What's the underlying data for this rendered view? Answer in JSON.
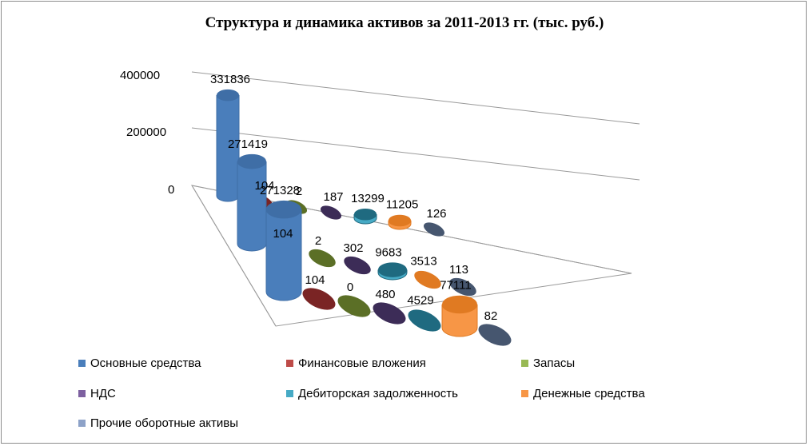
{
  "chart_data": {
    "type": "bar",
    "title": "Структура и динамика активов за 2011-2013 гг. (тыс. руб.)",
    "y_ticks": [
      "400000",
      "200000",
      "0"
    ],
    "categories": [
      "Основные средства",
      "Финансовые вложения",
      "Запасы",
      "НДС",
      "Дебиторская задолженность",
      "Денежные средства",
      "Прочие оборотные активы"
    ],
    "series": [
      {
        "values": [
          331836,
          104,
          2,
          187,
          13299,
          11205,
          126
        ]
      },
      {
        "values": [
          271419,
          104,
          2,
          302,
          9683,
          3513,
          113
        ]
      },
      {
        "values": [
          271328,
          104,
          0,
          480,
          4529,
          77111,
          82
        ]
      }
    ],
    "colors": {
      "Основные средства": "#4a7ebb",
      "Финансовые вложения": "#be4b48",
      "Запасы": "#98b954",
      "НДС": "#7d60a0",
      "Дебиторская задолженность": "#46aac5",
      "Денежные средства": "#f79646",
      "Прочие оборотные активы": "#8da2c8"
    },
    "front_colors": {
      "Основные средства": "#3f6ea6",
      "Финансовые вложения": "#7a2424",
      "Запасы": "#5b6f26",
      "НДС": "#3c2c57",
      "Дебиторская задолженность": "#1f6a80",
      "Денежные средства": "#e07a22",
      "Прочие оборотные активы": "#46566f"
    },
    "legend_position": "bottom"
  }
}
